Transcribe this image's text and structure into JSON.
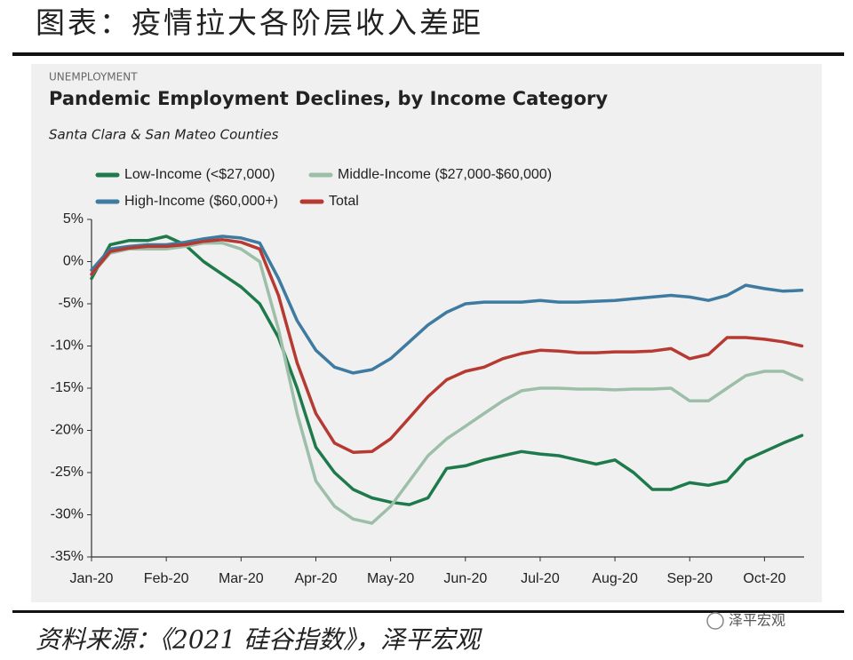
{
  "header": {
    "title": "图表：疫情拉大各阶层收入差距"
  },
  "chart_data": {
    "type": "line",
    "label": "UNEMPLOYMENT",
    "title": "Pandemic Employment Declines, by Income Category",
    "subtitle": "Santa Clara & San Mateo Counties",
    "x": [
      0,
      0.25,
      0.5,
      0.75,
      1,
      1.25,
      1.5,
      1.75,
      2,
      2.25,
      2.5,
      2.75,
      3,
      3.25,
      3.5,
      3.75,
      4,
      4.25,
      4.5,
      4.75,
      5,
      5.25,
      5.5,
      5.75,
      6,
      6.25,
      6.5,
      6.75,
      7,
      7.25,
      7.5,
      7.75,
      8,
      8.25,
      8.5,
      8.75,
      9,
      9.25,
      9.5
    ],
    "xlim": [
      0,
      9.53
    ],
    "xticks": [
      {
        "value": 0,
        "label": "Jan-20"
      },
      {
        "value": 1,
        "label": "Feb-20"
      },
      {
        "value": 2,
        "label": "Mar-20"
      },
      {
        "value": 3,
        "label": "Apr-20"
      },
      {
        "value": 4,
        "label": "May-20"
      },
      {
        "value": 5,
        "label": "Jun-20"
      },
      {
        "value": 6,
        "label": "Jul-20"
      },
      {
        "value": 7,
        "label": "Aug-20"
      },
      {
        "value": 8,
        "label": "Sep-20"
      },
      {
        "value": 9,
        "label": "Oct-20"
      }
    ],
    "ylim": [
      -35,
      5
    ],
    "yticks": [
      {
        "value": 5,
        "label": "5%"
      },
      {
        "value": 0,
        "label": "0%"
      },
      {
        "value": -5,
        "label": "-5%"
      },
      {
        "value": -10,
        "label": "-10%"
      },
      {
        "value": -15,
        "label": "-15%"
      },
      {
        "value": -20,
        "label": "-20%"
      },
      {
        "value": -25,
        "label": "-25%"
      },
      {
        "value": -30,
        "label": "-30%"
      },
      {
        "value": -35,
        "label": "-35%"
      }
    ],
    "grid": false,
    "series": [
      {
        "name": "Low-Income (<$27,000)",
        "color": "#1e7a4a",
        "values": [
          -2,
          2,
          2.5,
          2.5,
          3,
          2,
          0,
          -1.5,
          -3,
          -5,
          -9,
          -15,
          -22,
          -25,
          -27,
          -28,
          -28.5,
          -28.8,
          -28,
          -24.5,
          -24.2,
          -23.5,
          -23,
          -22.5,
          -22.8,
          -23,
          -23.5,
          -24,
          -23.5,
          -25,
          -27,
          -27,
          -26.2,
          -26.5,
          -26,
          -23.5,
          -22.5,
          -21.5,
          -20.6
        ]
      },
      {
        "name": "Middle-Income ($27,000-$60,000)",
        "color": "#9dbfa9",
        "values": [
          -1.5,
          1,
          1.5,
          1.5,
          1.5,
          1.8,
          2.2,
          2.2,
          1.5,
          0,
          -8,
          -18,
          -26,
          -29,
          -30.5,
          -31,
          -29,
          -26,
          -23,
          -21,
          -19.5,
          -18,
          -16.5,
          -15.3,
          -15,
          -15,
          -15.1,
          -15.1,
          -15.2,
          -15.1,
          -15.1,
          -15,
          -16.5,
          -16.5,
          -15,
          -13.5,
          -13,
          -13,
          -14
        ]
      },
      {
        "name": "High-Income ($60,000+)",
        "color": "#3f7aa0",
        "values": [
          -1,
          1.5,
          1.8,
          2,
          2,
          2.3,
          2.7,
          3,
          2.8,
          2.2,
          -2,
          -7,
          -10.5,
          -12.5,
          -13.2,
          -12.8,
          -11.5,
          -9.5,
          -7.5,
          -6,
          -5,
          -4.8,
          -4.8,
          -4.8,
          -4.6,
          -4.8,
          -4.8,
          -4.7,
          -4.6,
          -4.4,
          -4.2,
          -4,
          -4.2,
          -4.6,
          -4,
          -2.8,
          -3.2,
          -3.5,
          -3.4
        ]
      },
      {
        "name": "Total",
        "color": "#b63a32",
        "values": [
          -1.5,
          1.2,
          1.6,
          1.8,
          1.8,
          2,
          2.4,
          2.6,
          2.3,
          1.5,
          -4,
          -12,
          -18,
          -21.5,
          -22.6,
          -22.5,
          -21,
          -18.5,
          -16,
          -14,
          -13,
          -12.5,
          -11.5,
          -10.9,
          -10.5,
          -10.6,
          -10.8,
          -10.8,
          -10.7,
          -10.7,
          -10.6,
          -10.3,
          -11.5,
          -11,
          -9,
          -9,
          -9.2,
          -9.5,
          -10
        ]
      }
    ]
  },
  "footer": {
    "source": "资料来源：《2021 硅谷指数》，泽平宏观",
    "watermark": "泽平宏观"
  }
}
